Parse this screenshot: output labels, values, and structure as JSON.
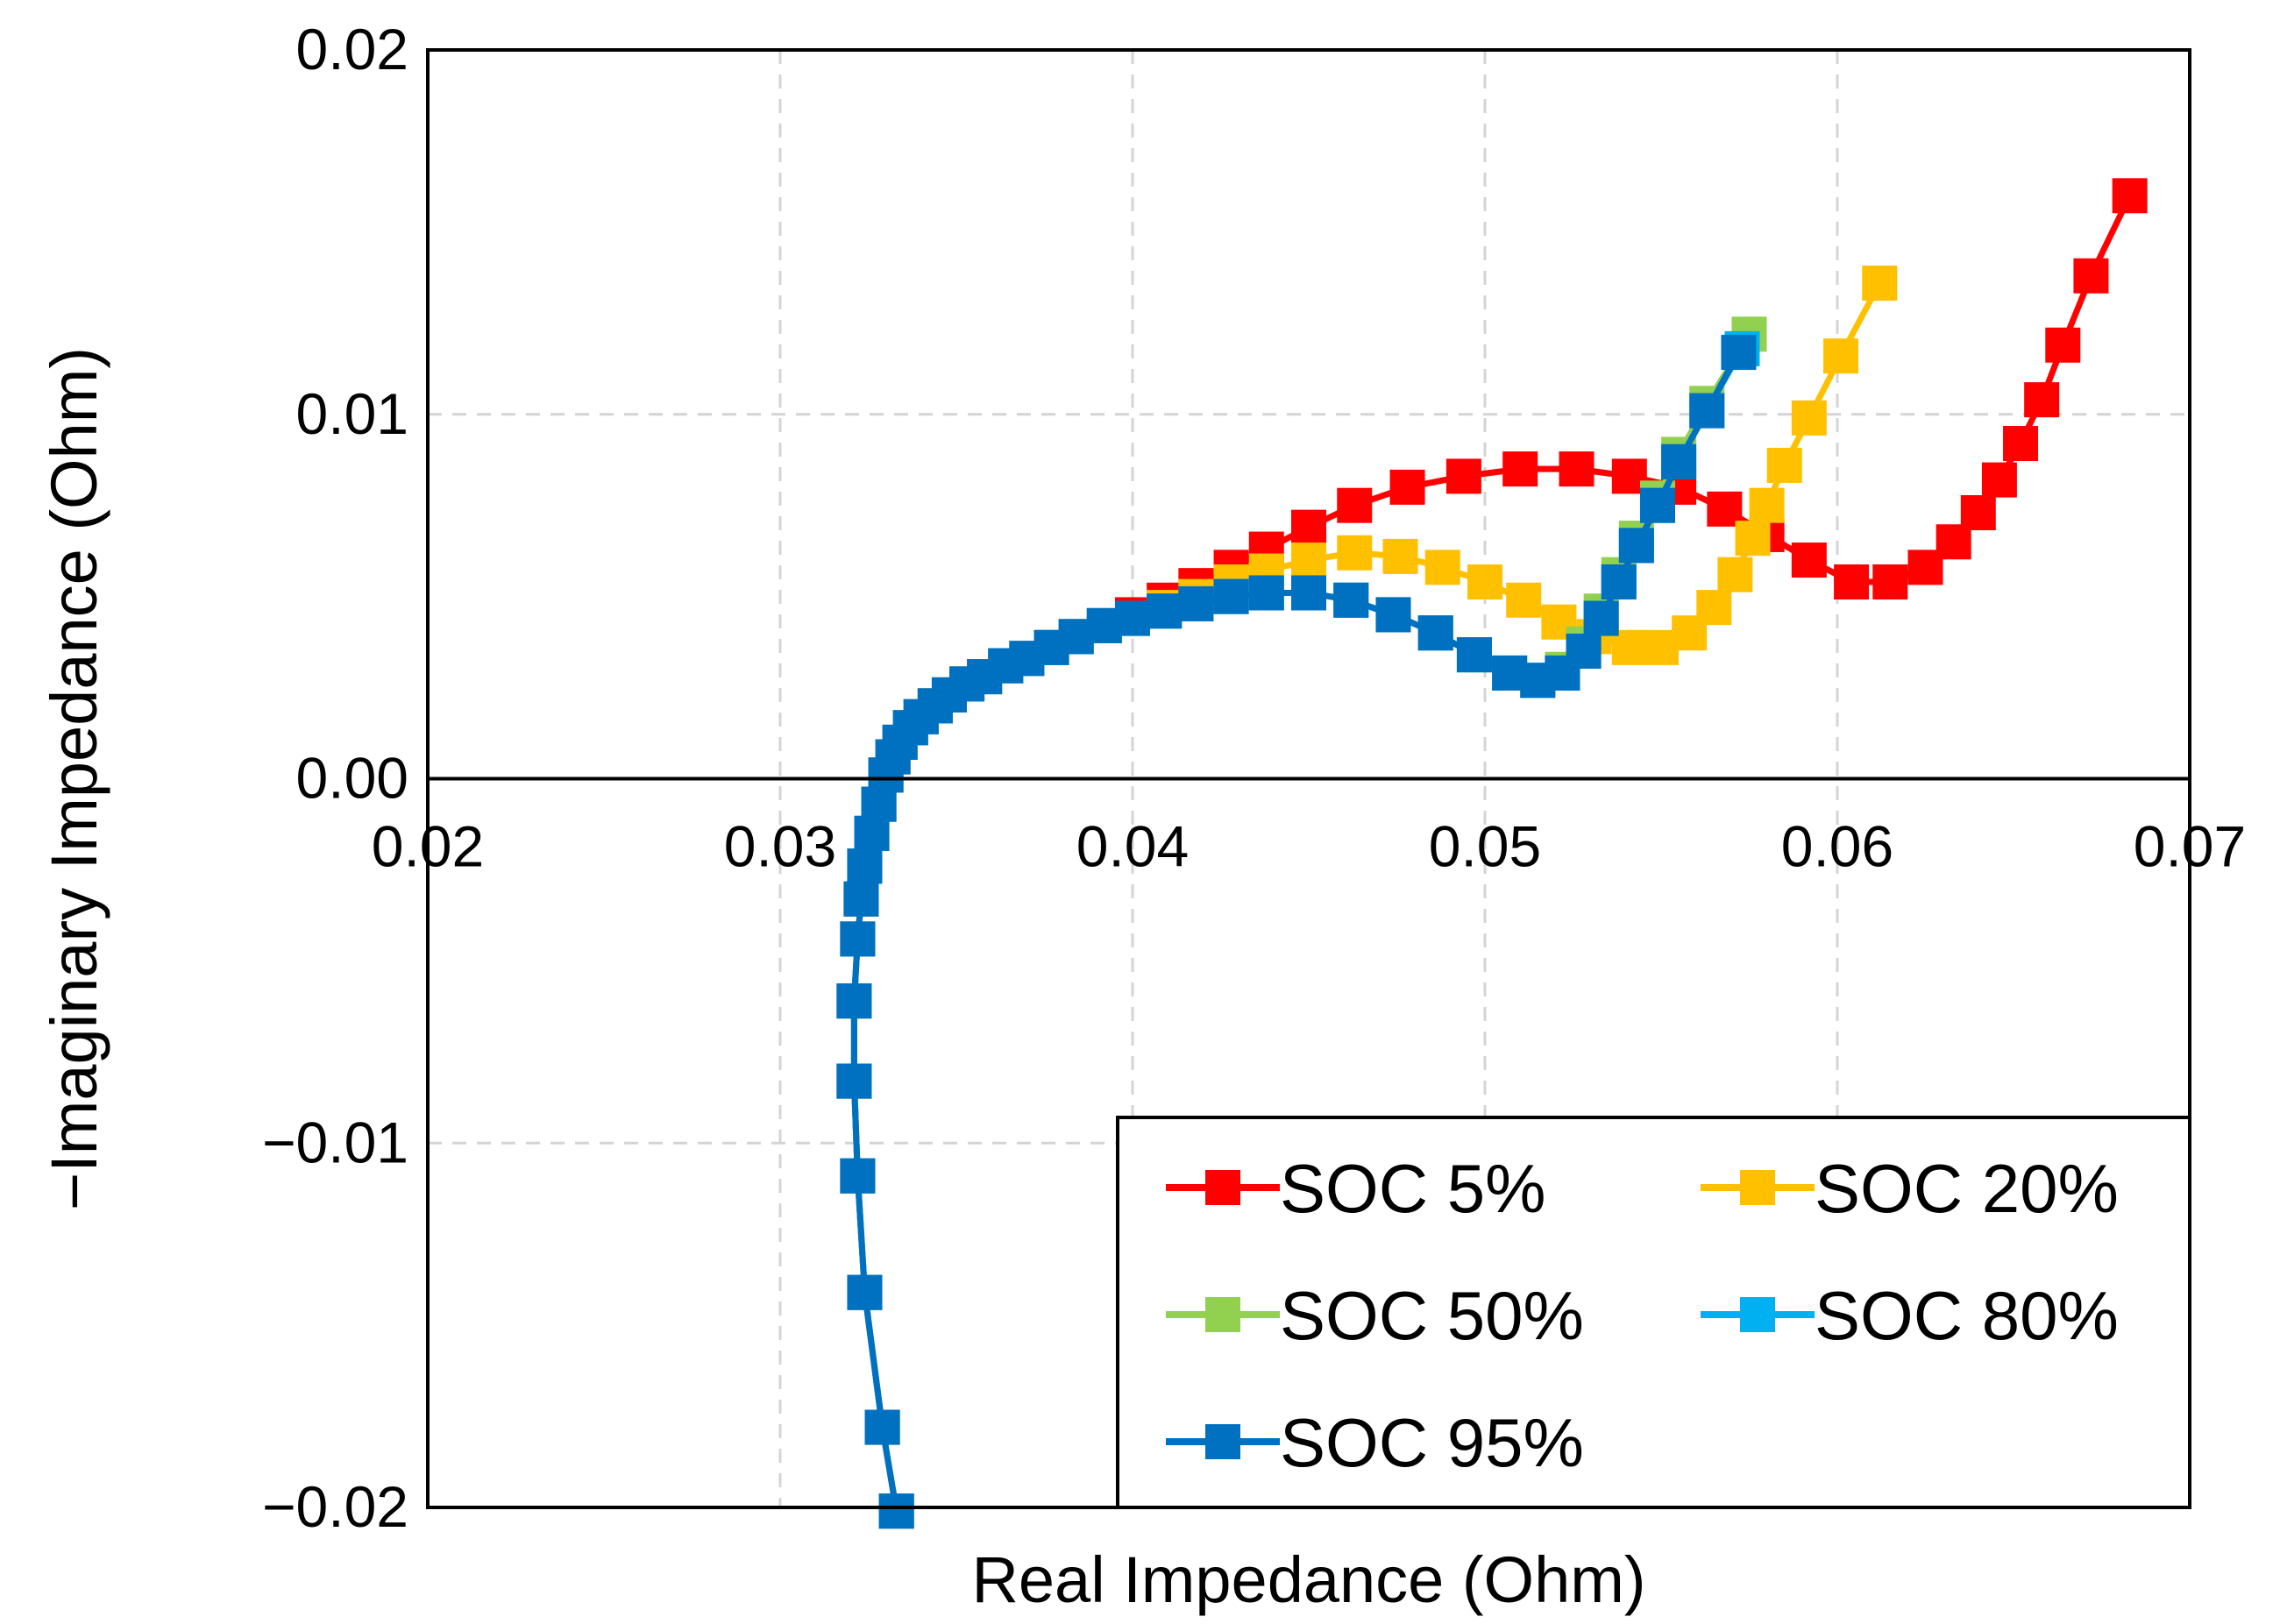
{
  "chart_data": {
    "type": "scatter",
    "title": "",
    "xlabel": "Real Impedance (Ohm)",
    "ylabel": "−Imaginary Impedance (Ohm)",
    "xlim": [
      0.02,
      0.07
    ],
    "ylim": [
      -0.02,
      0.02
    ],
    "xticks": [
      0.02,
      0.03,
      0.04,
      0.05,
      0.06,
      0.07
    ],
    "yticks": [
      -0.02,
      -0.01,
      0.0,
      0.01,
      0.02
    ],
    "xtick_labels": [
      "0.02",
      "0.03",
      "0.04",
      "0.05",
      "0.06",
      "0.07"
    ],
    "ytick_labels": [
      "−0.02",
      "−0.01",
      "0.00",
      "0.01",
      "0.02"
    ],
    "grid": true,
    "legend_position": "bottom-right",
    "series": [
      {
        "name": "SOC 5%",
        "color": "#ff0000",
        "points": [
          [
            0.0333,
            -0.0201
          ],
          [
            0.0329,
            -0.0178
          ],
          [
            0.0324,
            -0.0141
          ],
          [
            0.0322,
            -0.0109
          ],
          [
            0.0321,
            -0.0083
          ],
          [
            0.0321,
            -0.0061
          ],
          [
            0.0322,
            -0.0044
          ],
          [
            0.0323,
            -0.0033
          ],
          [
            0.0324,
            -0.0024
          ],
          [
            0.0326,
            -0.0015
          ],
          [
            0.0328,
            -0.0007
          ],
          [
            0.033,
            0.0001
          ],
          [
            0.0332,
            0.0006
          ],
          [
            0.0334,
            0.001
          ],
          [
            0.0337,
            0.0014
          ],
          [
            0.034,
            0.0017
          ],
          [
            0.0344,
            0.002
          ],
          [
            0.0348,
            0.0023
          ],
          [
            0.0353,
            0.0026
          ],
          [
            0.0358,
            0.0028
          ],
          [
            0.0364,
            0.0031
          ],
          [
            0.037,
            0.0033
          ],
          [
            0.0377,
            0.0036
          ],
          [
            0.0384,
            0.0039
          ],
          [
            0.0392,
            0.0042
          ],
          [
            0.04,
            0.0045
          ],
          [
            0.0409,
            0.0049
          ],
          [
            0.0418,
            0.0053
          ],
          [
            0.0428,
            0.0058
          ],
          [
            0.0438,
            0.0063
          ],
          [
            0.045,
            0.0069
          ],
          [
            0.0463,
            0.0075
          ],
          [
            0.0478,
            0.008
          ],
          [
            0.0494,
            0.0083
          ],
          [
            0.051,
            0.0085
          ],
          [
            0.0526,
            0.0085
          ],
          [
            0.0541,
            0.0083
          ],
          [
            0.0555,
            0.008
          ],
          [
            0.0568,
            0.0074
          ],
          [
            0.058,
            0.0067
          ],
          [
            0.0592,
            0.006
          ],
          [
            0.0604,
            0.0054
          ],
          [
            0.0615,
            0.0054
          ],
          [
            0.0625,
            0.0058
          ],
          [
            0.0633,
            0.0065
          ],
          [
            0.064,
            0.0073
          ],
          [
            0.0646,
            0.0082
          ],
          [
            0.0652,
            0.0092
          ],
          [
            0.0658,
            0.0104
          ],
          [
            0.0664,
            0.0119
          ],
          [
            0.0672,
            0.0138
          ],
          [
            0.0683,
            0.016
          ]
        ]
      },
      {
        "name": "SOC 20%",
        "color": "#ffc000",
        "points": [
          [
            0.0333,
            -0.0201
          ],
          [
            0.0329,
            -0.0178
          ],
          [
            0.0324,
            -0.0141
          ],
          [
            0.0322,
            -0.0109
          ],
          [
            0.0321,
            -0.0083
          ],
          [
            0.0321,
            -0.0061
          ],
          [
            0.0322,
            -0.0044
          ],
          [
            0.0323,
            -0.0033
          ],
          [
            0.0324,
            -0.0024
          ],
          [
            0.0326,
            -0.0015
          ],
          [
            0.0328,
            -0.0007
          ],
          [
            0.033,
            0.0001
          ],
          [
            0.0332,
            0.0006
          ],
          [
            0.0334,
            0.001
          ],
          [
            0.0337,
            0.0014
          ],
          [
            0.034,
            0.0017
          ],
          [
            0.0344,
            0.002
          ],
          [
            0.0348,
            0.0023
          ],
          [
            0.0353,
            0.0026
          ],
          [
            0.0358,
            0.0028
          ],
          [
            0.0364,
            0.0031
          ],
          [
            0.037,
            0.0033
          ],
          [
            0.0377,
            0.0036
          ],
          [
            0.0384,
            0.0039
          ],
          [
            0.0392,
            0.0042
          ],
          [
            0.04,
            0.0044
          ],
          [
            0.0409,
            0.0047
          ],
          [
            0.0418,
            0.005
          ],
          [
            0.0428,
            0.0054
          ],
          [
            0.0438,
            0.0057
          ],
          [
            0.045,
            0.006
          ],
          [
            0.0463,
            0.0062
          ],
          [
            0.0476,
            0.0061
          ],
          [
            0.0488,
            0.0058
          ],
          [
            0.05,
            0.0054
          ],
          [
            0.0511,
            0.0049
          ],
          [
            0.0521,
            0.0043
          ],
          [
            0.0531,
            0.0039
          ],
          [
            0.0541,
            0.0036
          ],
          [
            0.055,
            0.0036
          ],
          [
            0.0558,
            0.004
          ],
          [
            0.0565,
            0.0047
          ],
          [
            0.0571,
            0.0056
          ],
          [
            0.0576,
            0.0066
          ],
          [
            0.058,
            0.0075
          ],
          [
            0.0585,
            0.0086
          ],
          [
            0.0592,
            0.0099
          ],
          [
            0.0601,
            0.0116
          ],
          [
            0.0612,
            0.0136
          ]
        ]
      },
      {
        "name": "SOC 50%",
        "color": "#92d050",
        "points": [
          [
            0.0333,
            -0.0201
          ],
          [
            0.0329,
            -0.0178
          ],
          [
            0.0324,
            -0.0141
          ],
          [
            0.0322,
            -0.0109
          ],
          [
            0.0321,
            -0.0083
          ],
          [
            0.0321,
            -0.0061
          ],
          [
            0.0322,
            -0.0044
          ],
          [
            0.0323,
            -0.0033
          ],
          [
            0.0324,
            -0.0024
          ],
          [
            0.0326,
            -0.0015
          ],
          [
            0.0328,
            -0.0007
          ],
          [
            0.033,
            0.0001
          ],
          [
            0.0332,
            0.0006
          ],
          [
            0.0334,
            0.001
          ],
          [
            0.0337,
            0.0014
          ],
          [
            0.034,
            0.0017
          ],
          [
            0.0344,
            0.002
          ],
          [
            0.0348,
            0.0023
          ],
          [
            0.0353,
            0.0026
          ],
          [
            0.0358,
            0.0028
          ],
          [
            0.0364,
            0.0031
          ],
          [
            0.037,
            0.0033
          ],
          [
            0.0377,
            0.0036
          ],
          [
            0.0384,
            0.0039
          ],
          [
            0.0392,
            0.0042
          ],
          [
            0.04,
            0.0044
          ],
          [
            0.0409,
            0.0046
          ],
          [
            0.0418,
            0.0048
          ],
          [
            0.0428,
            0.005
          ],
          [
            0.0438,
            0.0051
          ],
          [
            0.045,
            0.0051
          ],
          [
            0.0462,
            0.0049
          ],
          [
            0.0474,
            0.0045
          ],
          [
            0.0486,
            0.004
          ],
          [
            0.0497,
            0.0034
          ],
          [
            0.0507,
            0.0029
          ],
          [
            0.0515,
            0.0027
          ],
          [
            0.0522,
            0.003
          ],
          [
            0.0528,
            0.0037
          ],
          [
            0.0533,
            0.0046
          ],
          [
            0.0538,
            0.0056
          ],
          [
            0.0543,
            0.0066
          ],
          [
            0.0549,
            0.0077
          ],
          [
            0.0555,
            0.0089
          ],
          [
            0.0563,
            0.0103
          ],
          [
            0.0575,
            0.0122
          ]
        ]
      },
      {
        "name": "SOC 80%",
        "color": "#00b0f0",
        "points": [
          [
            0.0333,
            -0.0201
          ],
          [
            0.0329,
            -0.0178
          ],
          [
            0.0324,
            -0.0141
          ],
          [
            0.0322,
            -0.0109
          ],
          [
            0.0321,
            -0.0083
          ],
          [
            0.0321,
            -0.0061
          ],
          [
            0.0322,
            -0.0044
          ],
          [
            0.0323,
            -0.0033
          ],
          [
            0.0324,
            -0.0024
          ],
          [
            0.0326,
            -0.0015
          ],
          [
            0.0328,
            -0.0007
          ],
          [
            0.033,
            0.0001
          ],
          [
            0.0332,
            0.0006
          ],
          [
            0.0334,
            0.001
          ],
          [
            0.0337,
            0.0014
          ],
          [
            0.034,
            0.0017
          ],
          [
            0.0344,
            0.002
          ],
          [
            0.0348,
            0.0023
          ],
          [
            0.0353,
            0.0026
          ],
          [
            0.0358,
            0.0028
          ],
          [
            0.0364,
            0.0031
          ],
          [
            0.037,
            0.0033
          ],
          [
            0.0377,
            0.0036
          ],
          [
            0.0384,
            0.0039
          ],
          [
            0.0392,
            0.0042
          ],
          [
            0.04,
            0.0044
          ],
          [
            0.0409,
            0.0046
          ],
          [
            0.0418,
            0.0048
          ],
          [
            0.0428,
            0.005
          ],
          [
            0.0438,
            0.0051
          ],
          [
            0.045,
            0.0051
          ],
          [
            0.0462,
            0.0049
          ],
          [
            0.0474,
            0.0045
          ],
          [
            0.0486,
            0.004
          ],
          [
            0.0497,
            0.0034
          ],
          [
            0.0507,
            0.0029
          ],
          [
            0.0515,
            0.0027
          ],
          [
            0.0522,
            0.0029
          ],
          [
            0.0528,
            0.0035
          ],
          [
            0.0533,
            0.0044
          ],
          [
            0.0538,
            0.0054
          ],
          [
            0.0543,
            0.0064
          ],
          [
            0.0549,
            0.0075
          ],
          [
            0.0555,
            0.0087
          ],
          [
            0.0563,
            0.0101
          ],
          [
            0.0573,
            0.0118
          ]
        ]
      },
      {
        "name": "SOC 95%",
        "color": "#0070c0",
        "points": [
          [
            0.0333,
            -0.0201
          ],
          [
            0.0329,
            -0.0178
          ],
          [
            0.0324,
            -0.0141
          ],
          [
            0.0322,
            -0.0109
          ],
          [
            0.0321,
            -0.0083
          ],
          [
            0.0321,
            -0.0061
          ],
          [
            0.0322,
            -0.0044
          ],
          [
            0.0323,
            -0.0033
          ],
          [
            0.0324,
            -0.0024
          ],
          [
            0.0326,
            -0.0015
          ],
          [
            0.0328,
            -0.0007
          ],
          [
            0.033,
            0.0001
          ],
          [
            0.0332,
            0.0006
          ],
          [
            0.0334,
            0.001
          ],
          [
            0.0337,
            0.0014
          ],
          [
            0.034,
            0.0017
          ],
          [
            0.0344,
            0.002
          ],
          [
            0.0348,
            0.0023
          ],
          [
            0.0353,
            0.0026
          ],
          [
            0.0358,
            0.0028
          ],
          [
            0.0364,
            0.0031
          ],
          [
            0.037,
            0.0033
          ],
          [
            0.0377,
            0.0036
          ],
          [
            0.0384,
            0.0039
          ],
          [
            0.0392,
            0.0042
          ],
          [
            0.04,
            0.0044
          ],
          [
            0.0409,
            0.0046
          ],
          [
            0.0418,
            0.0048
          ],
          [
            0.0428,
            0.005
          ],
          [
            0.0438,
            0.0051
          ],
          [
            0.045,
            0.0051
          ],
          [
            0.0462,
            0.0049
          ],
          [
            0.0474,
            0.0045
          ],
          [
            0.0486,
            0.004
          ],
          [
            0.0497,
            0.0034
          ],
          [
            0.0507,
            0.0029
          ],
          [
            0.0515,
            0.0027
          ],
          [
            0.0522,
            0.0029
          ],
          [
            0.0528,
            0.0035
          ],
          [
            0.0533,
            0.0044
          ],
          [
            0.0538,
            0.0054
          ],
          [
            0.0543,
            0.0064
          ],
          [
            0.0549,
            0.0075
          ],
          [
            0.0555,
            0.0087
          ],
          [
            0.0563,
            0.0101
          ],
          [
            0.0572,
            0.0117
          ]
        ]
      }
    ]
  }
}
